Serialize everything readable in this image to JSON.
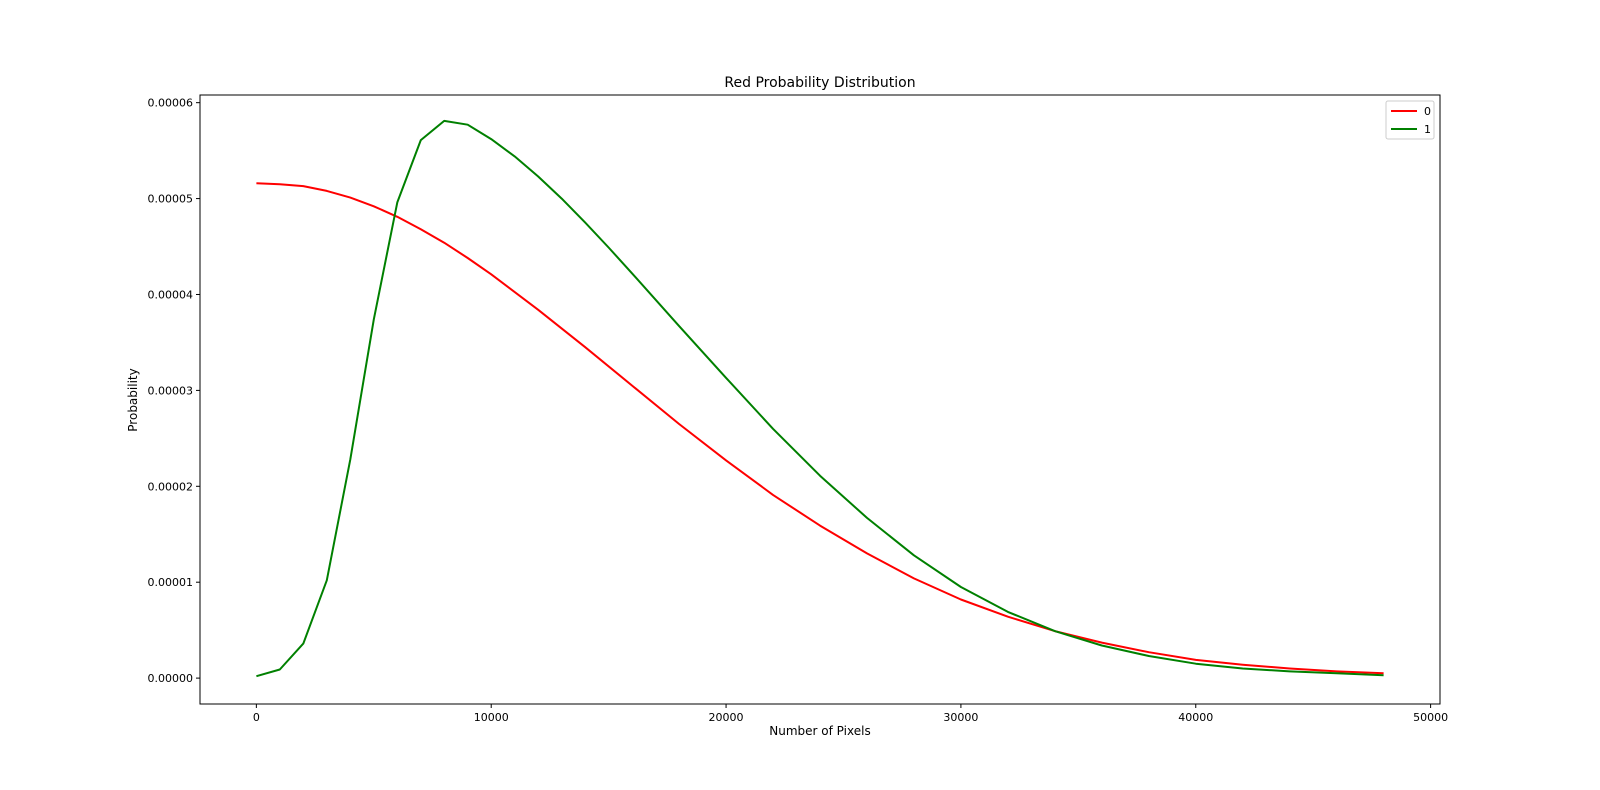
{
  "chart_data": {
    "type": "line",
    "title": "Red Probability Distribution",
    "xlabel": "Number of Pixels",
    "ylabel": "Probability",
    "xlim": [
      -2400,
      50400
    ],
    "ylim": [
      -2.7e-06,
      6.08e-05
    ],
    "xticks": [
      0,
      10000,
      20000,
      30000,
      40000,
      50000
    ],
    "xtick_labels": [
      "0",
      "10000",
      "20000",
      "30000",
      "40000",
      "50000"
    ],
    "yticks": [
      0,
      1e-05,
      2e-05,
      3e-05,
      4e-05,
      5e-05,
      6e-05
    ],
    "ytick_labels": [
      "0.00000",
      "0.00001",
      "0.00002",
      "0.00003",
      "0.00004",
      "0.00005",
      "0.00006"
    ],
    "grid": false,
    "legend_position": "top-right",
    "series": [
      {
        "name": "0",
        "color": "#ff0000",
        "x": [
          0,
          1000,
          2000,
          3000,
          4000,
          5000,
          6000,
          7000,
          8000,
          9000,
          10000,
          12000,
          14000,
          16000,
          18000,
          20000,
          22000,
          24000,
          26000,
          28000,
          30000,
          32000,
          34000,
          36000,
          38000,
          40000,
          42000,
          44000,
          46000,
          48000
        ],
        "y": [
          5.16e-05,
          5.15e-05,
          5.13e-05,
          5.08e-05,
          5.01e-05,
          4.92e-05,
          4.81e-05,
          4.68e-05,
          4.54e-05,
          4.38e-05,
          4.21e-05,
          3.84e-05,
          3.45e-05,
          3.05e-05,
          2.65e-05,
          2.27e-05,
          1.91e-05,
          1.59e-05,
          1.3e-05,
          1.04e-05,
          8.2e-06,
          6.4e-06,
          4.9e-06,
          3.7e-06,
          2.7e-06,
          1.9e-06,
          1.4e-06,
          1e-06,
          7e-07,
          5e-07
        ]
      },
      {
        "name": "1",
        "color": "#008000",
        "x": [
          0,
          1000,
          2000,
          3000,
          4000,
          5000,
          6000,
          7000,
          8000,
          9000,
          10000,
          11000,
          12000,
          13000,
          14000,
          15000,
          16000,
          18000,
          20000,
          22000,
          24000,
          26000,
          28000,
          30000,
          32000,
          34000,
          36000,
          38000,
          40000,
          42000,
          44000,
          46000,
          48000
        ],
        "y": [
          2e-07,
          9e-07,
          3.6e-06,
          1.02e-05,
          2.28e-05,
          3.74e-05,
          4.96e-05,
          5.61e-05,
          5.81e-05,
          5.77e-05,
          5.62e-05,
          5.44e-05,
          5.23e-05,
          5e-05,
          4.75e-05,
          4.49e-05,
          4.22e-05,
          3.67e-05,
          3.13e-05,
          2.6e-05,
          2.11e-05,
          1.67e-05,
          1.28e-05,
          9.5e-06,
          6.9e-06,
          4.9e-06,
          3.4e-06,
          2.3e-06,
          1.5e-06,
          1e-06,
          7e-07,
          5e-07,
          3e-07
        ]
      }
    ]
  }
}
